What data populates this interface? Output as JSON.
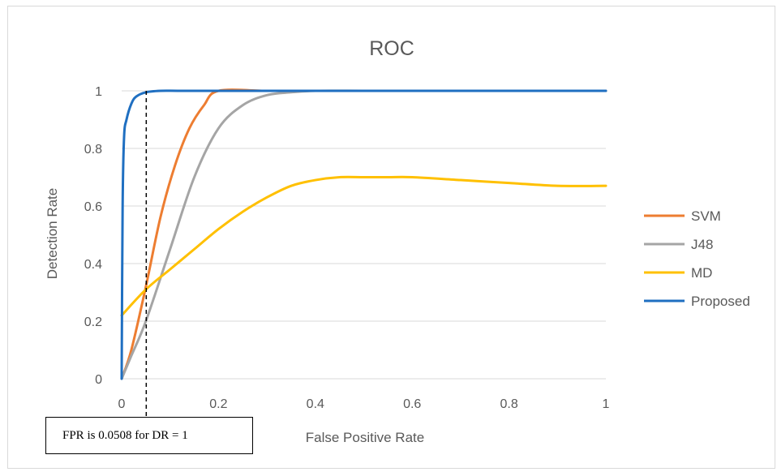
{
  "chart_data": {
    "type": "line",
    "title": "ROC",
    "xlabel": "False Positive Rate",
    "ylabel": "Detection Rate",
    "xlim": [
      0,
      1
    ],
    "ylim": [
      0,
      1
    ],
    "xticks": [
      "0",
      "0.2",
      "0.4",
      "0.6",
      "0.8",
      "1"
    ],
    "yticks": [
      "0",
      "0.2",
      "0.4",
      "0.6",
      "0.8",
      "1"
    ],
    "grid": "horizontal",
    "legend_position": "right",
    "series": [
      {
        "name": "SVM",
        "color": "#ed7d31",
        "x": [
          0,
          0.02,
          0.05,
          0.08,
          0.11,
          0.14,
          0.17,
          0.2,
          0.3,
          0.4,
          0.5,
          0.6,
          0.7,
          0.8,
          0.9,
          1.0
        ],
        "y": [
          0,
          0.1,
          0.32,
          0.56,
          0.74,
          0.87,
          0.95,
          1.0,
          1.0,
          1.0,
          1.0,
          1.0,
          1.0,
          1.0,
          1.0,
          1.0
        ]
      },
      {
        "name": "J48",
        "color": "#a5a5a5",
        "x": [
          0,
          0.02,
          0.05,
          0.1,
          0.15,
          0.2,
          0.25,
          0.3,
          0.35,
          0.4,
          0.5,
          0.6,
          0.7,
          0.8,
          0.9,
          1.0
        ],
        "y": [
          0,
          0.08,
          0.2,
          0.45,
          0.7,
          0.87,
          0.95,
          0.985,
          0.995,
          1.0,
          1.0,
          1.0,
          1.0,
          1.0,
          1.0,
          1.0
        ]
      },
      {
        "name": "MD",
        "color": "#ffc000",
        "x": [
          0,
          0.05,
          0.1,
          0.15,
          0.2,
          0.25,
          0.3,
          0.35,
          0.4,
          0.45,
          0.5,
          0.55,
          0.6,
          0.7,
          0.8,
          0.9,
          1.0
        ],
        "y": [
          0.22,
          0.31,
          0.38,
          0.45,
          0.52,
          0.58,
          0.63,
          0.67,
          0.69,
          0.7,
          0.7,
          0.7,
          0.7,
          0.69,
          0.68,
          0.67,
          0.67
        ]
      },
      {
        "name": "Proposed",
        "color": "#1f6fc1",
        "x": [
          0,
          0.002,
          0.005,
          0.01,
          0.02,
          0.03,
          0.05,
          0.08,
          0.12,
          0.2,
          0.4,
          0.6,
          0.8,
          1.0
        ],
        "y": [
          0,
          0.6,
          0.84,
          0.9,
          0.955,
          0.98,
          0.995,
          1.0,
          1.0,
          1.0,
          1.0,
          1.0,
          1.0,
          1.0
        ]
      }
    ],
    "annotation": {
      "text": "FPR is 0.0508 for DR = 1",
      "x": 0.0508
    }
  }
}
